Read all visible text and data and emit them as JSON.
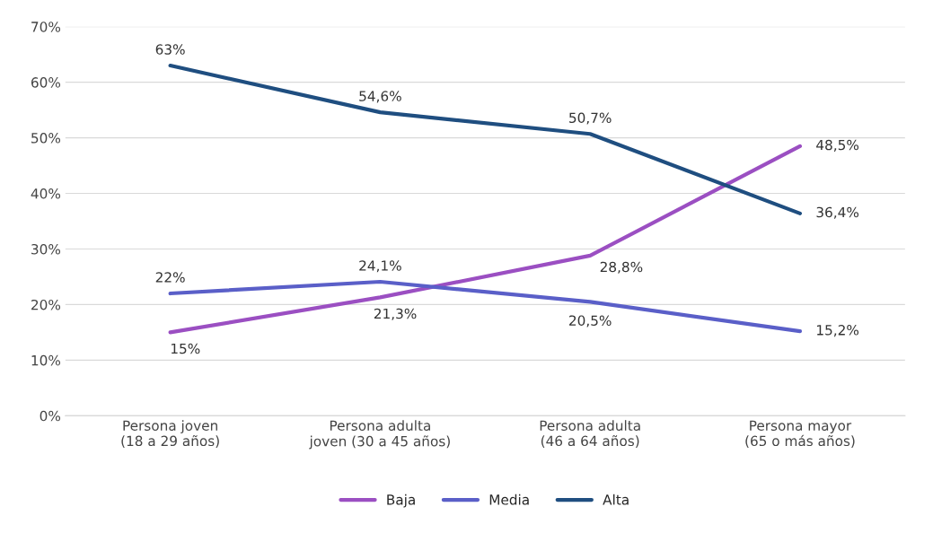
{
  "chart_data": {
    "type": "line",
    "categories": [
      "Persona joven (18 a 29 años)",
      "Persona adulta joven (30 a 45 años)",
      "Persona adulta (46 a 64 años)",
      "Persona mayor (65 o más años)"
    ],
    "series": [
      {
        "name": "Baja",
        "color": "#9b4fc2",
        "values": [
          15,
          21.3,
          28.8,
          48.5
        ],
        "value_labels": [
          "15%",
          "21,3%",
          "28,8%",
          "48,5%"
        ]
      },
      {
        "name": "Media",
        "color": "#5a5fc8",
        "values": [
          22,
          24.1,
          20.5,
          15.2
        ],
        "value_labels": [
          "22%",
          "24,1%",
          "20,5%",
          "15,2%"
        ]
      },
      {
        "name": "Alta",
        "color": "#1f4e80",
        "values": [
          63,
          54.6,
          50.7,
          36.4
        ],
        "value_labels": [
          "63%",
          "54,6%",
          "50,7%",
          "36,4%"
        ]
      }
    ],
    "ylim": [
      0,
      70
    ],
    "yticks": [
      {
        "value": 0,
        "label": "0%"
      },
      {
        "value": 10,
        "label": "10%"
      },
      {
        "value": 20,
        "label": "20%"
      },
      {
        "value": 30,
        "label": "30%"
      },
      {
        "value": 40,
        "label": "40%"
      },
      {
        "value": 50,
        "label": "50%"
      },
      {
        "value": 60,
        "label": "60%"
      },
      {
        "value": 70,
        "label": "70%"
      }
    ],
    "grid": "y",
    "legend": "bottom",
    "marker": "none",
    "line_style": "solid"
  }
}
